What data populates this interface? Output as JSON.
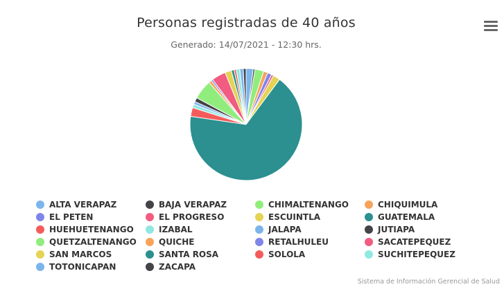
{
  "chart_data": {
    "type": "pie",
    "title": "Personas registradas de 40 años",
    "subtitle": "Generado: 14/07/2021 - 12:30 hrs.",
    "start_angle_deg": 0,
    "slices": [
      {
        "name": "ALTA VERAPAZ",
        "value": 2.0,
        "color": "#7cb5ec"
      },
      {
        "name": "BAJA VERAPAZ",
        "value": 0.5,
        "color": "#434348"
      },
      {
        "name": "CHIMALTENANGO",
        "value": 2.5,
        "color": "#90ed7d"
      },
      {
        "name": "CHIQUIMULA",
        "value": 1.2,
        "color": "#f7a35c"
      },
      {
        "name": "EL PETEN",
        "value": 1.2,
        "color": "#8085e9"
      },
      {
        "name": "EL PROGRESO",
        "value": 0.6,
        "color": "#f15c80"
      },
      {
        "name": "ESCUINTLA",
        "value": 2.0,
        "color": "#e4d354"
      },
      {
        "name": "GUATEMALA",
        "value": 66.0,
        "color": "#2b908f"
      },
      {
        "name": "HUEHUETENANGO",
        "value": 2.5,
        "color": "#f45b5b"
      },
      {
        "name": "IZABAL",
        "value": 1.0,
        "color": "#91e8e1"
      },
      {
        "name": "JALAPA",
        "value": 0.8,
        "color": "#7cb5ec"
      },
      {
        "name": "JUTIAPA",
        "value": 1.2,
        "color": "#434348"
      },
      {
        "name": "QUETZALTENANGO",
        "value": 5.5,
        "color": "#90ed7d"
      },
      {
        "name": "QUICHE",
        "value": 0.8,
        "color": "#f7a35c"
      },
      {
        "name": "RETALHULEU",
        "value": 0.5,
        "color": "#8085e9"
      },
      {
        "name": "SACATEPEQUEZ",
        "value": 4.0,
        "color": "#f15c80"
      },
      {
        "name": "SAN MARCOS",
        "value": 1.8,
        "color": "#e4d354"
      },
      {
        "name": "SANTA ROSA",
        "value": 0.8,
        "color": "#2b908f"
      },
      {
        "name": "SOLOLA",
        "value": 0.6,
        "color": "#f45b5b"
      },
      {
        "name": "SUCHITEPEQUEZ",
        "value": 1.0,
        "color": "#91e8e1"
      },
      {
        "name": "TOTONICAPAN",
        "value": 1.0,
        "color": "#7cb5ec"
      },
      {
        "name": "ZACAPA",
        "value": 0.8,
        "color": "#434348"
      }
    ]
  },
  "credits": "Sistema de Información Gerencial de Salud",
  "menu": {
    "icon": "hamburger-menu-icon"
  }
}
